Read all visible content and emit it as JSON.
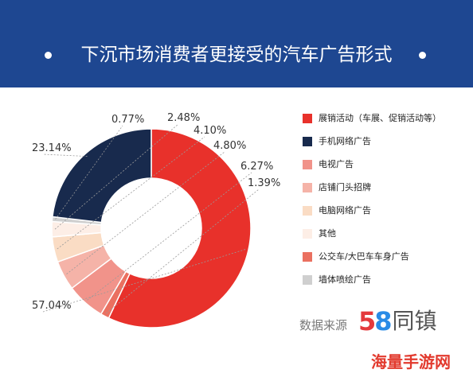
{
  "title": "下沉市场消费者更接受的汽车广告形式",
  "source": {
    "label": "数据来源",
    "brand_number": "58",
    "brand_name": "同镇"
  },
  "watermark": "海量手游网",
  "chart_data": {
    "type": "donut",
    "title": "下沉市场消费者更接受的汽车广告形式",
    "legend_position": "right",
    "series": [
      {
        "name": "展销活动（车展、促销活动等）",
        "value": 57.04,
        "label": "57.04%",
        "color": "#e8312b"
      },
      {
        "name": "手机网络广告",
        "value": 23.14,
        "label": "23.14%",
        "color": "#182a4d"
      },
      {
        "name": "电视广告",
        "value": 6.27,
        "label": "6.27%",
        "color": "#f1938a"
      },
      {
        "name": "店铺门头招牌",
        "value": 4.8,
        "label": "4.80%",
        "color": "#f5b3a8"
      },
      {
        "name": "电脑网络广告",
        "value": 4.1,
        "label": "4.10%",
        "color": "#fadcc4"
      },
      {
        "name": "其他",
        "value": 2.48,
        "label": "2.48%",
        "color": "#fdeee6"
      },
      {
        "name": "公交车/大巴车车身广告",
        "value": 1.39,
        "label": "1.39%",
        "color": "#ea7060"
      },
      {
        "name": "墙体喷绘广告",
        "value": 0.77,
        "label": "0.77%",
        "color": "#cfcfcf"
      }
    ]
  }
}
